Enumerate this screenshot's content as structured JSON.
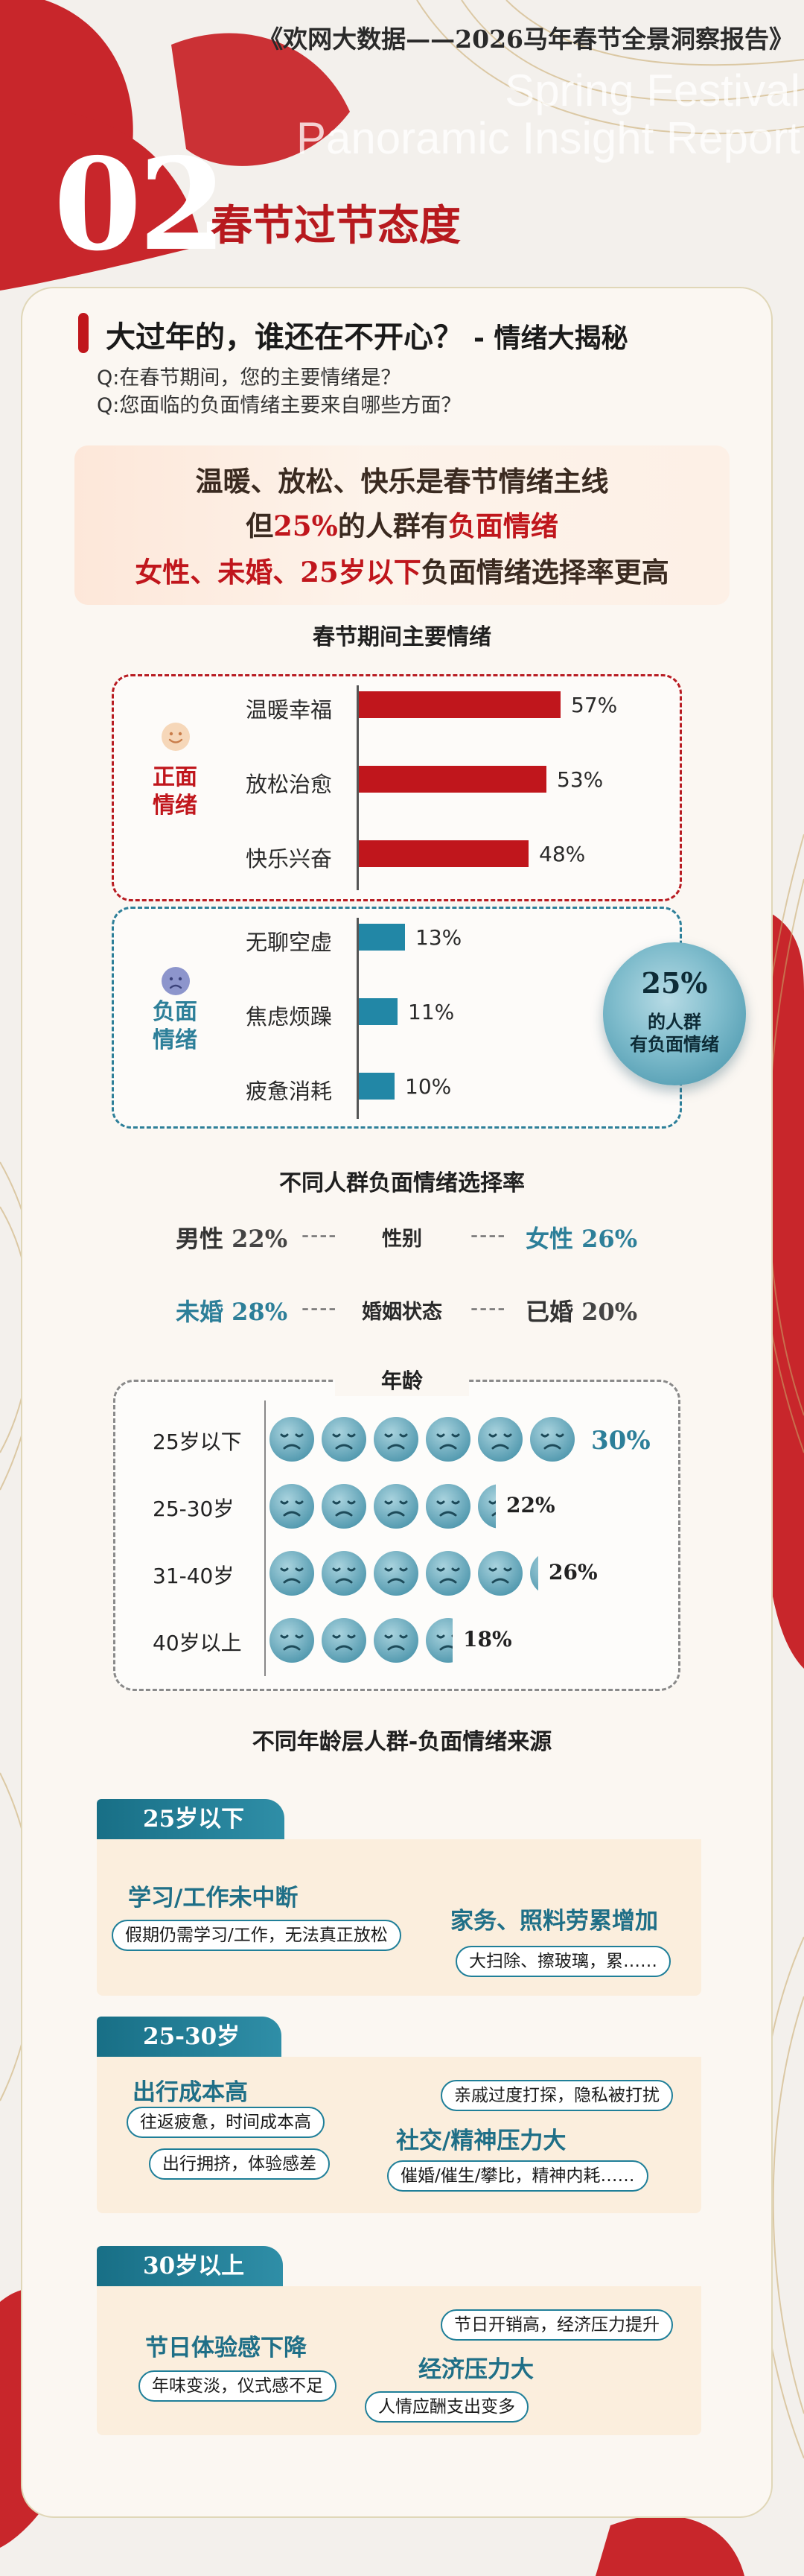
{
  "header": {
    "report_title": "《欢网大数据——2026马年春节全景洞察报告》",
    "english_line1": "Spring Festival",
    "english_line2": "Panoramic Insight Report",
    "section_number": "02",
    "section_name": "春节过节态度"
  },
  "intro": {
    "headline": "大过年的，谁还在不开心？",
    "headline_sub": "- 情绪大揭秘",
    "q1": "Q:在春节期间，您的主要情绪是？",
    "q2": "Q:您面临的负面情绪主要来自哪些方面？"
  },
  "highlight": {
    "line1": "温暖、放松、快乐是春节情绪主线",
    "line2_a": "但",
    "line2_b": "25%",
    "line2_c": "的人群有",
    "line2_d": "负面情绪",
    "line3_a": "女性、未婚、25岁以下",
    "line3_b": "负面情绪选择率更高"
  },
  "emotion_chart_title": "春节期间主要情绪",
  "chart_data": [
    {
      "type": "bar",
      "title": "春节期间主要情绪",
      "groups": [
        "正面情绪",
        "负面情绪"
      ],
      "categories": [
        "温暖幸福",
        "放松治愈",
        "快乐兴奋",
        "无聊空虚",
        "焦虑烦躁",
        "疲惫消耗"
      ],
      "values": [
        57,
        53,
        48,
        13,
        11,
        10
      ],
      "unit": "%",
      "group_of_each": [
        "正面情绪",
        "正面情绪",
        "正面情绪",
        "负面情绪",
        "负面情绪",
        "负面情绪"
      ],
      "value_labels": [
        "57%",
        "53%",
        "48%",
        "13%",
        "11%",
        "10%"
      ]
    },
    {
      "type": "bar",
      "title": "年龄",
      "categories": [
        "25岁以下",
        "25-30岁",
        "31-40岁",
        "40岁以上"
      ],
      "values": [
        30,
        22,
        26,
        18
      ],
      "unit": "%",
      "value_labels": [
        "30%",
        "22%",
        "26%",
        "18%"
      ]
    }
  ],
  "emotions": {
    "positive_label": "正面情绪",
    "negative_label": "负面情绪",
    "positive_color": "#c0161c",
    "negative_color": "#2287a6",
    "items": [
      {
        "label": "温暖幸福",
        "pct": "57%",
        "value": 57
      },
      {
        "label": "放松治愈",
        "pct": "53%",
        "value": 53
      },
      {
        "label": "快乐兴奋",
        "pct": "48%",
        "value": 48
      },
      {
        "label": "无聊空虚",
        "pct": "13%",
        "value": 13
      },
      {
        "label": "焦虑烦躁",
        "pct": "11%",
        "value": 11
      },
      {
        "label": "疲惫消耗",
        "pct": "10%",
        "value": 10
      }
    ]
  },
  "insight_bubble": {
    "pct": "25%",
    "line1": "的人群",
    "line2": "有负面情绪"
  },
  "demographics": {
    "title": "不同人群负面情绪选择率",
    "gender_label": "性别",
    "marital_label": "婚姻状态",
    "male_label": "男性",
    "male_pct": "22%",
    "female_label": "女性",
    "female_pct": "26%",
    "unmarried_label": "未婚",
    "unmarried_pct": "28%",
    "married_label": "已婚",
    "married_pct": "20%",
    "separator": "----"
  },
  "age": {
    "title": "年龄",
    "rows": [
      {
        "label": "25岁以下",
        "pct": "30%",
        "value": 30
      },
      {
        "label": "25-30岁",
        "pct": "22%",
        "value": 22
      },
      {
        "label": "31-40岁",
        "pct": "26%",
        "value": 26
      },
      {
        "label": "40岁以上",
        "pct": "18%",
        "value": 18
      }
    ]
  },
  "sources": {
    "title": "不同年龄层人群-负面情绪来源",
    "segments": [
      {
        "header": "25岁以下",
        "topic_a": "学习/工作未中断",
        "pill_a1": "假期仍需学习/工作，无法真正放松",
        "topic_b": "家务、照料劳累增加",
        "pill_b1": "大扫除、擦玻璃，累……"
      },
      {
        "header": "25-30岁",
        "topic_a": "出行成本高",
        "pill_a1": "往返疲惫，时间成本高",
        "pill_a2": "出行拥挤，体验感差",
        "pill_b0": "亲戚过度打探，隐私被打扰",
        "topic_b": "社交/精神压力大",
        "pill_b1": "催婚/催生/攀比，精神内耗……"
      },
      {
        "header": "30岁以上",
        "pill_b0": "节日开销高，经济压力提升",
        "topic_a": "节日体验感下降",
        "pill_a1": "年味变淡，仪式感不足",
        "topic_b": "经济压力大",
        "pill_b1": "人情应酬支出变多"
      }
    ]
  }
}
